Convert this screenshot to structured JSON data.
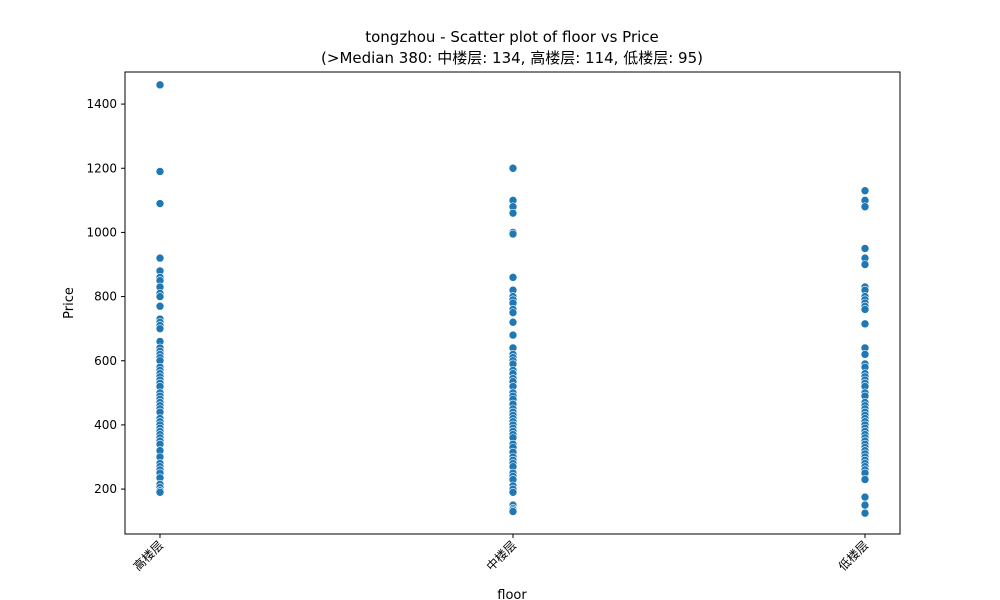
{
  "chart_data": {
    "type": "scatter",
    "title": "tongzhou - Scatter plot of floor vs Price",
    "subtitle": "(>Median 380: 中楼层: 134, 高楼层: 114, 低楼层: 95)",
    "xlabel": "floor",
    "ylabel": "Price",
    "categories": [
      "高楼层",
      "中楼层",
      "低楼层"
    ],
    "ylim": [
      60,
      1500
    ],
    "yticks": [
      200,
      400,
      600,
      800,
      1000,
      1200,
      1400
    ],
    "grid": false,
    "marker_color": "#1f77b4",
    "series": [
      {
        "category": "高楼层",
        "values": [
          1460,
          1190,
          1090,
          920,
          880,
          860,
          850,
          830,
          810,
          800,
          770,
          730,
          720,
          710,
          700,
          660,
          640,
          630,
          620,
          610,
          600,
          580,
          570,
          560,
          550,
          540,
          530,
          520,
          500,
          490,
          480,
          470,
          460,
          450,
          440,
          420,
          410,
          400,
          390,
          380,
          370,
          360,
          350,
          340,
          320,
          300,
          280,
          270,
          260,
          250,
          235,
          215,
          205,
          195,
          190
        ]
      },
      {
        "category": "中楼层",
        "values": [
          1200,
          1100,
          1080,
          1060,
          1000,
          995,
          860,
          820,
          800,
          790,
          780,
          760,
          750,
          720,
          680,
          640,
          620,
          610,
          600,
          590,
          570,
          560,
          545,
          535,
          520,
          500,
          490,
          480,
          465,
          450,
          440,
          430,
          420,
          410,
          400,
          390,
          380,
          370,
          360,
          340,
          330,
          315,
          300,
          290,
          280,
          270,
          250,
          240,
          230,
          210,
          200,
          190,
          150,
          140,
          135,
          130
        ]
      },
      {
        "category": "低楼层",
        "values": [
          1130,
          1100,
          1080,
          950,
          920,
          900,
          830,
          820,
          800,
          790,
          780,
          770,
          760,
          715,
          640,
          620,
          590,
          580,
          560,
          550,
          540,
          530,
          520,
          500,
          490,
          470,
          460,
          450,
          440,
          430,
          420,
          410,
          400,
          390,
          380,
          370,
          360,
          350,
          340,
          330,
          320,
          310,
          300,
          290,
          280,
          270,
          260,
          250,
          230,
          175,
          150,
          125
        ]
      }
    ]
  }
}
